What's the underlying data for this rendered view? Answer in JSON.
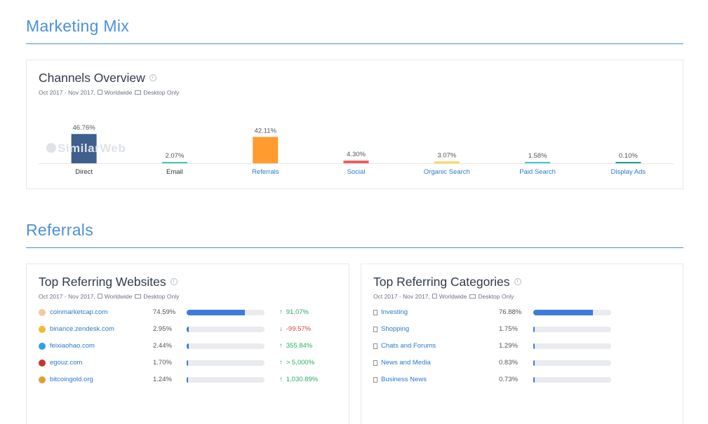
{
  "marketing_mix": {
    "title": "Marketing Mix"
  },
  "channels": {
    "title": "Channels Overview",
    "info_icon": "info-icon",
    "subtitle": {
      "date": "Oct 2017 - Nov 2017,",
      "region": "Worldwide",
      "device": "Desktop Only"
    },
    "watermark": "SimilarWeb"
  },
  "chart_data": {
    "type": "bar",
    "title": "",
    "categories": [
      "Direct",
      "Email",
      "Referrals",
      "Social",
      "Organic Search",
      "Paid Search",
      "Display Ads"
    ],
    "values": [
      46.76,
      2.07,
      42.11,
      4.3,
      3.07,
      1.58,
      0.1
    ],
    "value_labels": [
      "46.76%",
      "2.07%",
      "42.11%",
      "4.30%",
      "3.07%",
      "1.58%",
      "0.10%"
    ],
    "colors": [
      "#3f5f8c",
      "#49c5b6",
      "#ff9b2f",
      "#f05a5a",
      "#ffd65c",
      "#45c6c9",
      "#1f9e95"
    ],
    "label_colors": [
      "#333333",
      "#333333",
      "#2a7ac9",
      "#2a7ac9",
      "#2a7ac9",
      "#2a7ac9",
      "#2a7ac9"
    ],
    "xlabel": "",
    "ylabel": "",
    "ylim": [
      0,
      50
    ],
    "grid": false
  },
  "referrals": {
    "title": "Referrals"
  },
  "top_sites": {
    "title": "Top Referring Websites",
    "subtitle": {
      "date": "Oct 2017 - Nov 2017,",
      "region": "Worldwide",
      "device": "Desktop Only"
    },
    "rows": [
      {
        "site": "coinmarketcap.com",
        "pct": "74.59%",
        "share": 74.59,
        "change": "91.07%",
        "direction": "up",
        "icon": "coinmarketcap-favicon",
        "icon_color": "#f2c9a0"
      },
      {
        "site": "binance.zendesk.com",
        "pct": "2.95%",
        "share": 2.95,
        "change": "-99.57%",
        "direction": "down",
        "icon": "binance-favicon",
        "icon_color": "#f3ba2f"
      },
      {
        "site": "feixiaohao.com",
        "pct": "2.44%",
        "share": 2.44,
        "change": "355.84%",
        "direction": "up",
        "icon": "feixiaohao-favicon",
        "icon_color": "#2f9fe0"
      },
      {
        "site": "egouz.com",
        "pct": "1.70%",
        "share": 1.7,
        "change": "> 5,000%",
        "direction": "up",
        "icon": "egouz-favicon",
        "icon_color": "#c0392b"
      },
      {
        "site": "bitcoingold.org",
        "pct": "1.24%",
        "share": 1.24,
        "change": "1,030.89%",
        "direction": "up",
        "icon": "bitcoingold-favicon",
        "icon_color": "#e0a030"
      }
    ]
  },
  "top_categories": {
    "title": "Top Referring Categories",
    "subtitle": {
      "date": "Oct 2017 - Nov 2017,",
      "region": "Worldwide",
      "device": "Desktop Only"
    },
    "rows": [
      {
        "name": "Investing",
        "pct": "76.88%",
        "share": 76.88
      },
      {
        "name": "Shopping",
        "pct": "1.75%",
        "share": 1.75
      },
      {
        "name": "Chats and Forums",
        "pct": "1.29%",
        "share": 1.29
      },
      {
        "name": "News and Media",
        "pct": "0.83%",
        "share": 0.83
      },
      {
        "name": "Business News",
        "pct": "0.73%",
        "share": 0.73
      }
    ]
  }
}
